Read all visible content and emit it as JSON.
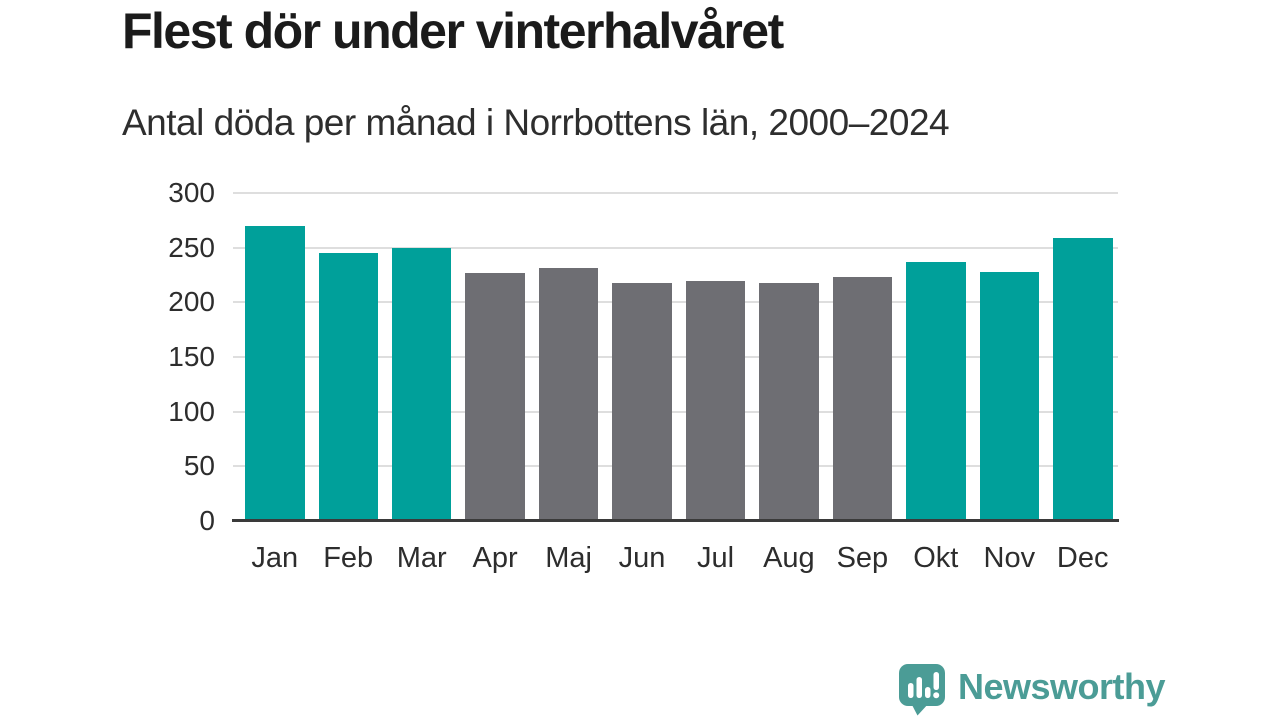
{
  "header": {
    "title": "Flest dör under vinterhalvåret",
    "subtitle": "Antal döda per månad i Norrbottens län, 2000–2024"
  },
  "chart_data": {
    "type": "bar",
    "title": "Flest dör under vinterhalvåret",
    "subtitle": "Antal döda per månad i Norrbottens län, 2000–2024",
    "categories": [
      "Jan",
      "Feb",
      "Mar",
      "Apr",
      "Maj",
      "Jun",
      "Jul",
      "Aug",
      "Sep",
      "Okt",
      "Nov",
      "Dec"
    ],
    "values": [
      270,
      245,
      250,
      227,
      231,
      218,
      220,
      218,
      223,
      237,
      228,
      259
    ],
    "bar_colors": [
      "#00a09a",
      "#00a09a",
      "#00a09a",
      "#6e6e73",
      "#6e6e73",
      "#6e6e73",
      "#6e6e73",
      "#6e6e73",
      "#6e6e73",
      "#00a09a",
      "#00a09a",
      "#00a09a"
    ],
    "xlabel": "",
    "ylabel": "",
    "ylim": [
      0,
      300
    ],
    "yticks": [
      0,
      50,
      100,
      150,
      200,
      250,
      300
    ],
    "grid": true,
    "legend": false
  },
  "footer": {
    "brand": "Newsworthy",
    "brand_color": "#4b9c96"
  },
  "colors": {
    "accent_teal": "#00a09a",
    "neutral_gray": "#6e6e73",
    "gridline": "#dedede",
    "axis_line": "#3a3a3a",
    "title_text": "#1b1b1b",
    "body_text": "#2d2d2d",
    "background": "#ffffff"
  }
}
